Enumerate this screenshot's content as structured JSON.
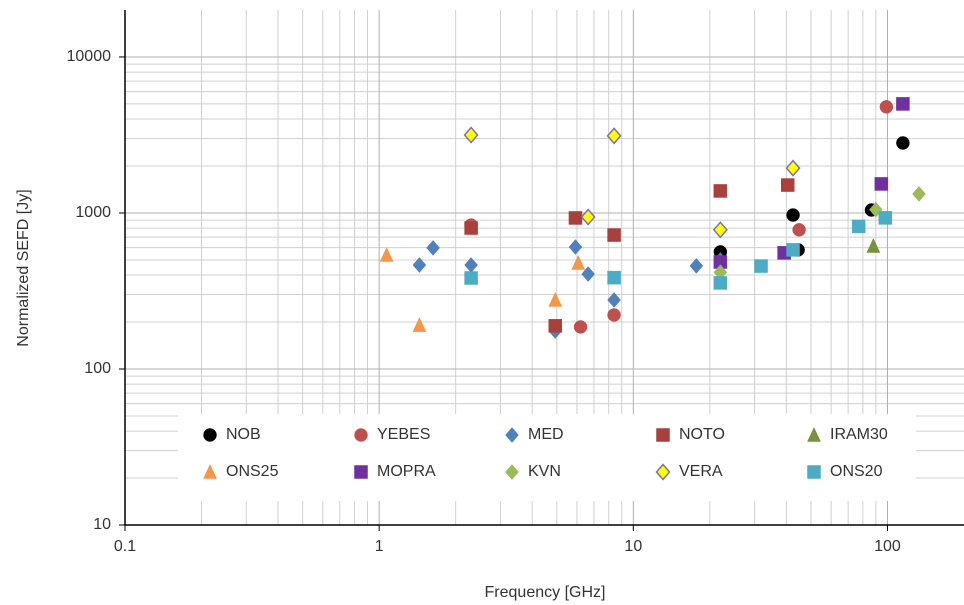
{
  "chart_data": {
    "type": "scatter",
    "x_label": "Frequency [GHz]",
    "y_label": "Normalized SEFD [Jy]",
    "xlim": [
      0.1,
      200
    ],
    "ylim": [
      10,
      20000
    ],
    "xticks": [
      0.1,
      1,
      10,
      100
    ],
    "yticks": [
      10,
      100,
      1000,
      10000
    ],
    "x_log": true,
    "y_log": true,
    "grid": true,
    "minor_grid": true,
    "legend": "bottom",
    "series": [
      {
        "name": "NOB",
        "color": "#000000",
        "marker": "circle",
        "x": [
          22,
          42.5,
          44.5,
          86.5,
          115
        ],
        "values": [
          563,
          970,
          580,
          1045,
          2810
        ]
      },
      {
        "name": "YEBES",
        "color": "#c0504d",
        "marker": "circle",
        "x": [
          2.3,
          6.2,
          8.4,
          44.9,
          99
        ],
        "values": [
          837,
          186,
          222,
          780,
          4790
        ]
      },
      {
        "name": "MED",
        "color": "#4f81bd",
        "marker": "diamond",
        "x": [
          1.44,
          1.63,
          2.3,
          4.93,
          5.92,
          6.64,
          8.4,
          17.7,
          22
        ],
        "values": [
          464,
          597,
          464,
          175,
          605,
          406,
          277,
          458,
          500
        ]
      },
      {
        "name": "NOTO",
        "color": "#a9403c",
        "marker": "square",
        "x": [
          2.3,
          5.92,
          8.4,
          22,
          40.5,
          4.93
        ],
        "values": [
          801,
          929,
          722,
          1384,
          1510,
          189
        ]
      },
      {
        "name": "IRAM30",
        "color": "#77933c",
        "marker": "triangle",
        "x": [
          88
        ],
        "values": [
          614
        ]
      },
      {
        "name": "ONS25",
        "color": "#f79646",
        "marker": "triangle",
        "x": [
          1.07,
          1.44,
          4.93,
          6.07
        ],
        "values": [
          538,
          191,
          277,
          478
        ]
      },
      {
        "name": "MOPRA",
        "color": "#7030a0",
        "marker": "square",
        "x": [
          22,
          39.2,
          94.6,
          115
        ],
        "values": [
          485,
          555,
          1535,
          5000
        ]
      },
      {
        "name": "KVN",
        "color": "#9bbb59",
        "marker": "diamond",
        "x": [
          22,
          90,
          133
        ],
        "values": [
          417,
          1050,
          1325
        ]
      },
      {
        "name": "VERA",
        "color": "#ffff00",
        "stroke": "#7f6fb0",
        "marker": "diamond",
        "x": [
          2.3,
          6.64,
          8.4,
          22,
          42.5
        ],
        "values": [
          3160,
          942,
          3120,
          780,
          1940
        ]
      },
      {
        "name": "ONS20",
        "color": "#4bacc6",
        "marker": "square",
        "x": [
          2.3,
          8.4,
          22,
          31.8,
          42.5,
          77,
          98
        ],
        "values": [
          383,
          385,
          356,
          457,
          580,
          820,
          930
        ]
      }
    ]
  }
}
